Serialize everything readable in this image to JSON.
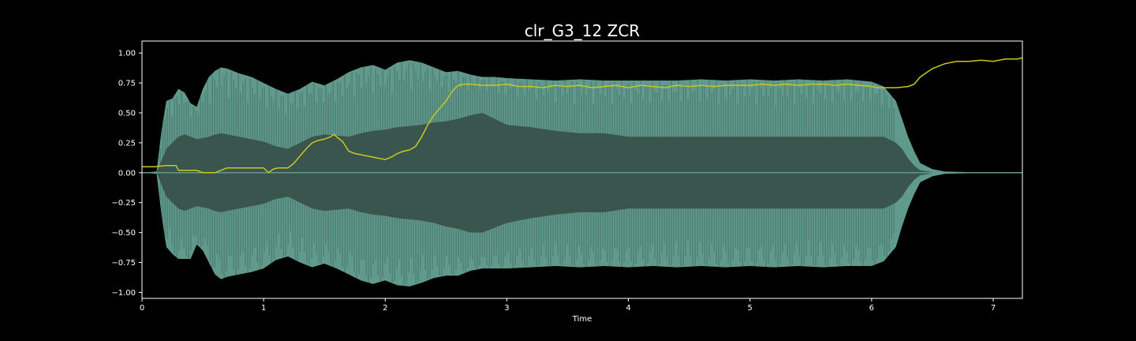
{
  "chart_data": {
    "type": "area",
    "title": "clr_G3_12 ZCR",
    "xlabel": "Time",
    "ylabel": "",
    "xlim": [
      0,
      7.24
    ],
    "ylim": [
      -1.05,
      1.1
    ],
    "x_ticks": [
      0,
      1,
      2,
      3,
      4,
      5,
      6,
      7
    ],
    "x_tick_labels": [
      "0",
      "1",
      "2",
      "3",
      "4",
      "5",
      "6",
      "7"
    ],
    "y_ticks": [
      1.0,
      0.75,
      0.5,
      0.25,
      0.0,
      -0.25,
      -0.5,
      -0.75,
      -1.0
    ],
    "y_tick_labels": [
      "1.00",
      "0.75",
      "0.50",
      "0.25",
      "0.00",
      "−0.25",
      "−0.50",
      "−0.75",
      "−1.00"
    ],
    "grid": false,
    "colors": {
      "background": "#000000",
      "waveform_outer": "#5f9a8c",
      "waveform_inner": "#3a544e",
      "zcr_line": "#c8c81e",
      "axes": "#ffffff"
    },
    "waveform_envelope": {
      "t": [
        0,
        0.12,
        0.16,
        0.2,
        0.25,
        0.3,
        0.35,
        0.4,
        0.45,
        0.5,
        0.55,
        0.6,
        0.65,
        0.7,
        0.8,
        0.9,
        1.0,
        1.1,
        1.2,
        1.3,
        1.4,
        1.5,
        1.6,
        1.7,
        1.8,
        1.9,
        2.0,
        2.1,
        2.2,
        2.3,
        2.4,
        2.5,
        2.6,
        2.7,
        2.8,
        2.9,
        3.0,
        3.2,
        3.4,
        3.6,
        3.8,
        4.0,
        4.2,
        4.4,
        4.6,
        4.8,
        5.0,
        5.2,
        5.4,
        5.6,
        5.8,
        6.0,
        6.1,
        6.2,
        6.25,
        6.3,
        6.35,
        6.4,
        6.5,
        6.6,
        6.8,
        7.0,
        7.24
      ],
      "upper": [
        0,
        0.01,
        0.35,
        0.6,
        0.62,
        0.7,
        0.67,
        0.58,
        0.55,
        0.7,
        0.8,
        0.85,
        0.88,
        0.87,
        0.83,
        0.8,
        0.75,
        0.7,
        0.66,
        0.7,
        0.76,
        0.73,
        0.78,
        0.84,
        0.88,
        0.9,
        0.86,
        0.92,
        0.94,
        0.92,
        0.88,
        0.84,
        0.85,
        0.82,
        0.8,
        0.8,
        0.79,
        0.78,
        0.77,
        0.78,
        0.77,
        0.77,
        0.77,
        0.77,
        0.78,
        0.77,
        0.78,
        0.77,
        0.78,
        0.77,
        0.78,
        0.76,
        0.72,
        0.6,
        0.45,
        0.3,
        0.18,
        0.08,
        0.03,
        0.01,
        0.005,
        0.003,
        0.002
      ],
      "lower": [
        0,
        -0.01,
        -0.35,
        -0.62,
        -0.68,
        -0.72,
        -0.72,
        -0.72,
        -0.6,
        -0.65,
        -0.75,
        -0.85,
        -0.89,
        -0.87,
        -0.85,
        -0.83,
        -0.8,
        -0.73,
        -0.7,
        -0.75,
        -0.79,
        -0.76,
        -0.8,
        -0.85,
        -0.9,
        -0.93,
        -0.9,
        -0.94,
        -0.95,
        -0.92,
        -0.88,
        -0.86,
        -0.86,
        -0.82,
        -0.8,
        -0.8,
        -0.8,
        -0.79,
        -0.78,
        -0.79,
        -0.78,
        -0.79,
        -0.78,
        -0.79,
        -0.78,
        -0.79,
        -0.78,
        -0.79,
        -0.78,
        -0.79,
        -0.78,
        -0.78,
        -0.74,
        -0.62,
        -0.45,
        -0.3,
        -0.18,
        -0.08,
        -0.03,
        -0.01,
        -0.005,
        -0.003,
        -0.002
      ],
      "inner_upper": [
        0,
        0.0,
        0.1,
        0.2,
        0.25,
        0.3,
        0.32,
        0.3,
        0.28,
        0.29,
        0.3,
        0.32,
        0.33,
        0.32,
        0.3,
        0.28,
        0.26,
        0.22,
        0.2,
        0.25,
        0.3,
        0.32,
        0.31,
        0.3,
        0.33,
        0.35,
        0.36,
        0.38,
        0.39,
        0.4,
        0.42,
        0.43,
        0.45,
        0.48,
        0.5,
        0.45,
        0.4,
        0.38,
        0.35,
        0.33,
        0.33,
        0.3,
        0.3,
        0.3,
        0.3,
        0.3,
        0.3,
        0.3,
        0.3,
        0.3,
        0.3,
        0.3,
        0.3,
        0.25,
        0.2,
        0.12,
        0.06,
        0.02,
        0.005,
        0.002,
        0.001,
        0.001,
        0.001
      ],
      "inner_lower": [
        0,
        0.0,
        -0.1,
        -0.2,
        -0.25,
        -0.3,
        -0.32,
        -0.3,
        -0.28,
        -0.29,
        -0.3,
        -0.32,
        -0.33,
        -0.32,
        -0.3,
        -0.28,
        -0.26,
        -0.22,
        -0.2,
        -0.25,
        -0.3,
        -0.32,
        -0.31,
        -0.3,
        -0.33,
        -0.35,
        -0.36,
        -0.38,
        -0.39,
        -0.4,
        -0.42,
        -0.45,
        -0.47,
        -0.5,
        -0.5,
        -0.46,
        -0.42,
        -0.38,
        -0.35,
        -0.33,
        -0.33,
        -0.3,
        -0.3,
        -0.3,
        -0.3,
        -0.3,
        -0.3,
        -0.3,
        -0.3,
        -0.3,
        -0.3,
        -0.3,
        -0.3,
        -0.25,
        -0.2,
        -0.12,
        -0.06,
        -0.02,
        -0.005,
        -0.002,
        -0.001,
        -0.001,
        -0.001
      ]
    },
    "zcr": {
      "x": [
        0,
        0.1,
        0.2,
        0.28,
        0.3,
        0.45,
        0.5,
        0.6,
        0.65,
        0.7,
        0.8,
        0.9,
        1.0,
        1.04,
        1.08,
        1.12,
        1.2,
        1.25,
        1.3,
        1.35,
        1.4,
        1.45,
        1.5,
        1.55,
        1.58,
        1.6,
        1.65,
        1.7,
        1.75,
        1.8,
        1.9,
        2.0,
        2.05,
        2.1,
        2.15,
        2.2,
        2.25,
        2.3,
        2.35,
        2.4,
        2.5,
        2.55,
        2.6,
        2.65,
        2.7,
        2.8,
        2.9,
        3.0,
        3.1,
        3.2,
        3.3,
        3.4,
        3.5,
        3.6,
        3.7,
        3.8,
        3.9,
        4.0,
        4.1,
        4.2,
        4.3,
        4.4,
        4.5,
        4.6,
        4.7,
        4.8,
        4.9,
        5.0,
        5.1,
        5.2,
        5.3,
        5.4,
        5.5,
        5.6,
        5.7,
        5.8,
        5.9,
        6.0,
        6.05,
        6.1,
        6.2,
        6.3,
        6.35,
        6.4,
        6.5,
        6.6,
        6.7,
        6.8,
        6.9,
        7.0,
        7.1,
        7.2,
        7.24
      ],
      "y": [
        0.05,
        0.05,
        0.06,
        0.06,
        0.02,
        0.02,
        0.0,
        0.0,
        0.02,
        0.04,
        0.04,
        0.04,
        0.04,
        0.0,
        0.03,
        0.04,
        0.04,
        0.08,
        0.14,
        0.2,
        0.25,
        0.27,
        0.28,
        0.3,
        0.32,
        0.3,
        0.26,
        0.18,
        0.16,
        0.15,
        0.13,
        0.11,
        0.13,
        0.16,
        0.18,
        0.19,
        0.22,
        0.3,
        0.4,
        0.48,
        0.6,
        0.68,
        0.73,
        0.74,
        0.74,
        0.73,
        0.73,
        0.74,
        0.72,
        0.72,
        0.71,
        0.73,
        0.72,
        0.73,
        0.71,
        0.72,
        0.73,
        0.71,
        0.73,
        0.72,
        0.71,
        0.73,
        0.72,
        0.73,
        0.72,
        0.73,
        0.73,
        0.73,
        0.74,
        0.73,
        0.74,
        0.73,
        0.74,
        0.74,
        0.73,
        0.74,
        0.73,
        0.72,
        0.71,
        0.71,
        0.71,
        0.72,
        0.74,
        0.8,
        0.87,
        0.91,
        0.93,
        0.93,
        0.94,
        0.93,
        0.95,
        0.95,
        0.96
      ]
    }
  }
}
